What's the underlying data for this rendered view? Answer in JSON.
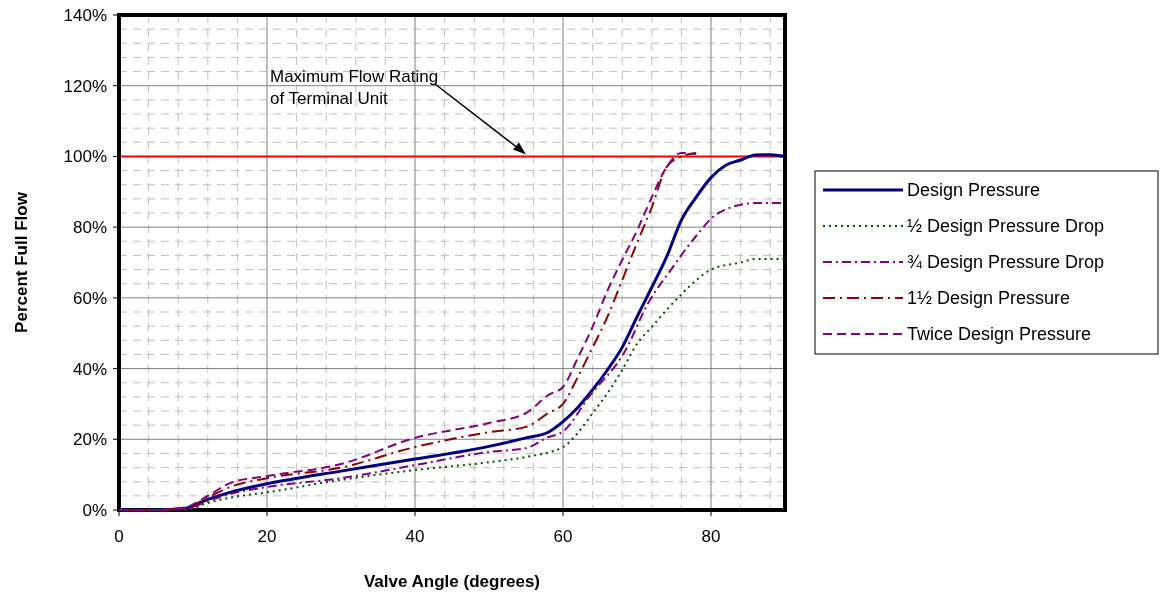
{
  "chart_data": {
    "type": "line",
    "xlabel": "Valve Angle (degrees)",
    "ylabel": "Percent Full Flow",
    "xlim": [
      0,
      90
    ],
    "xticks": [
      0,
      20,
      40,
      60,
      80
    ],
    "ylim": [
      0,
      140
    ],
    "yticks": [
      {
        "value": 0,
        "label": "0%"
      },
      {
        "value": 20,
        "label": "20%"
      },
      {
        "value": 40,
        "label": "40%"
      },
      {
        "value": 60,
        "label": "60%"
      },
      {
        "value": 80,
        "label": "80%"
      },
      {
        "value": 100,
        "label": "100%"
      },
      {
        "value": 120,
        "label": "120%"
      },
      {
        "value": 140,
        "label": "140%"
      }
    ],
    "grid": true,
    "legend": "right",
    "ref_lines": [
      {
        "axis": "y",
        "value": 100,
        "color": "#ff0000"
      }
    ],
    "annotations": [
      {
        "text": "Maximum Flow Rating\nof Terminal Unit",
        "x": 55,
        "y": 100
      }
    ],
    "series": [
      {
        "name": "Design Pressure",
        "color": "#000080",
        "line_style": "solid",
        "x": [
          0,
          5,
          9,
          12,
          15,
          20,
          30,
          40,
          50,
          55,
          58,
          60,
          62,
          64,
          66,
          68,
          70,
          72,
          74,
          76,
          78,
          80,
          82,
          84,
          86,
          88,
          90
        ],
        "values": [
          0,
          0,
          0.5,
          3,
          5,
          7.4,
          11,
          14.4,
          18,
          20.4,
          22,
          25,
          29,
          34,
          39.6,
          46,
          54.6,
          63,
          71.6,
          82,
          88.5,
          94,
          97.5,
          99,
          100.4,
          100.5,
          100
        ]
      },
      {
        "name": "½ Design Pressure Drop",
        "color": "#005000",
        "line_style": "dotted",
        "x": [
          0,
          5,
          9,
          12,
          15,
          20,
          30,
          40,
          50,
          55,
          60,
          62,
          64,
          66,
          68,
          70,
          72,
          74,
          76,
          78,
          80,
          84,
          86,
          90
        ],
        "values": [
          0,
          0,
          0,
          2,
          3.5,
          5,
          8.5,
          11.3,
          13.5,
          15,
          17.8,
          21.8,
          27.4,
          33,
          39.6,
          47,
          51.8,
          56.6,
          61,
          65,
          68,
          70,
          71,
          71
        ]
      },
      {
        "name": "¾ Design Pressure Drop",
        "color": "#800080",
        "line_style": "dashdot",
        "x": [
          0,
          5,
          9,
          12,
          15,
          20,
          30,
          40,
          50,
          55,
          58,
          60,
          63.5,
          68.4,
          71.5,
          74.6,
          77.8,
          81,
          86,
          90
        ],
        "values": [
          0,
          0,
          0.3,
          2.5,
          4.5,
          6.5,
          9,
          12.7,
          16.4,
          17.5,
          20.6,
          22.2,
          32,
          45,
          58.5,
          68,
          77,
          84,
          86.8,
          86.8
        ]
      },
      {
        "name": "1½ Design Pressure",
        "color": "#8b0000",
        "line_style": "longdashdot",
        "x": [
          0,
          5,
          9,
          12,
          15,
          20,
          30,
          40,
          50,
          55,
          58,
          60,
          62,
          64,
          66,
          68,
          70,
          72,
          74,
          76,
          78
        ],
        "values": [
          0,
          0,
          0.6,
          3.5,
          6.5,
          9,
          12,
          17.8,
          22,
          23.5,
          27.4,
          30,
          37.6,
          46,
          54.6,
          65,
          75.5,
          85.6,
          97,
          100,
          101
        ]
      },
      {
        "name": "Twice Design Pressure",
        "color": "#800080",
        "line_style": "dashed",
        "x": [
          0,
          5,
          9,
          12,
          15,
          20,
          30,
          40,
          50,
          55,
          58,
          60,
          62,
          64,
          66,
          68,
          70,
          72,
          74,
          76,
          78
        ],
        "values": [
          0,
          0,
          0.8,
          4,
          7.6,
          9.6,
          13,
          20.4,
          24.6,
          27.4,
          32.5,
          34.8,
          43,
          51.8,
          62,
          70.7,
          79,
          88.5,
          97,
          101,
          100.7
        ]
      }
    ]
  }
}
